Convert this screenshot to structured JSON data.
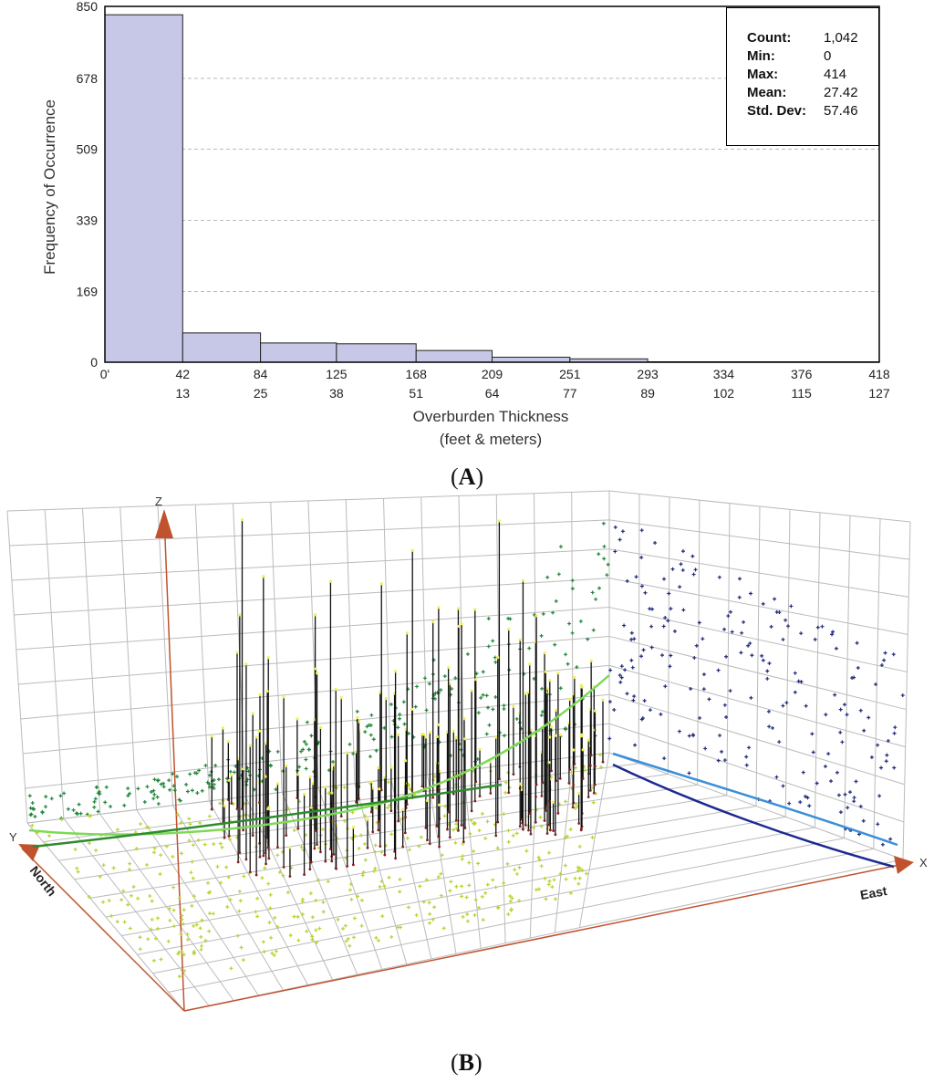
{
  "panel_a": {
    "label_open": "(",
    "label_letter": "A",
    "label_close": ")"
  },
  "panel_b": {
    "label_open": "(",
    "label_letter": "B",
    "label_close": ")"
  },
  "stats": {
    "rows": [
      {
        "key": "Count",
        "sep": ":",
        "value": "1,042",
        "bold": true
      },
      {
        "key": "Min",
        "sep": ":",
        "value": "0",
        "bold": true
      },
      {
        "key": "Max",
        "sep": ":",
        "value": "414",
        "bold": true
      },
      {
        "key": "Mean",
        "sep": ":",
        "value": "27.42",
        "bold": true
      },
      {
        "key": "Std. Dev",
        "sep": ":",
        "value": "57.46",
        "bold": true
      }
    ]
  },
  "chart_data": [
    {
      "type": "bar",
      "title": "",
      "ylabel": "Frequency of Occurrence",
      "xlabel": "Overburden Thickness",
      "xlabel_sub": "(feet & meters)",
      "ylim": [
        0,
        850
      ],
      "yticks": [
        "0",
        "169",
        "339",
        "509",
        "678",
        "850"
      ],
      "ytick_values": [
        0,
        169,
        339,
        509,
        678,
        850
      ],
      "x_ticks_feet": [
        "0'",
        "42",
        "84",
        "125",
        "168",
        "209",
        "251",
        "293",
        "334",
        "376",
        "418"
      ],
      "x_ticks_meters": [
        "",
        "13",
        "25",
        "38",
        "51",
        "64",
        "77",
        "89",
        "102",
        "115",
        "127"
      ],
      "bin_edges_feet": [
        0,
        42,
        84,
        125,
        168,
        209,
        251,
        293,
        334,
        376,
        418
      ],
      "values": [
        830,
        70,
        46,
        44,
        28,
        12,
        8,
        1,
        1,
        1
      ],
      "bar_color": "#c7c8e8",
      "grid": "horizontal dashed"
    },
    {
      "type": "scatter",
      "title": "",
      "axes": {
        "z_label": "Z",
        "y_label": "Y",
        "x_label": "X",
        "north_label": "North",
        "east_label": "East"
      },
      "series": [
        {
          "color": "#22863a"
        },
        {
          "color": "#1f2a7a"
        },
        {
          "color": "#b8d430"
        }
      ],
      "trend_colors": {
        "yz": "#7ed957",
        "yz_dark": "#2e8b2e",
        "xz": "#3a8fd8",
        "xz_dark": "#1c2a8f"
      },
      "axis_color": "#c0522e",
      "grid_color": "#bbbbbb"
    }
  ]
}
